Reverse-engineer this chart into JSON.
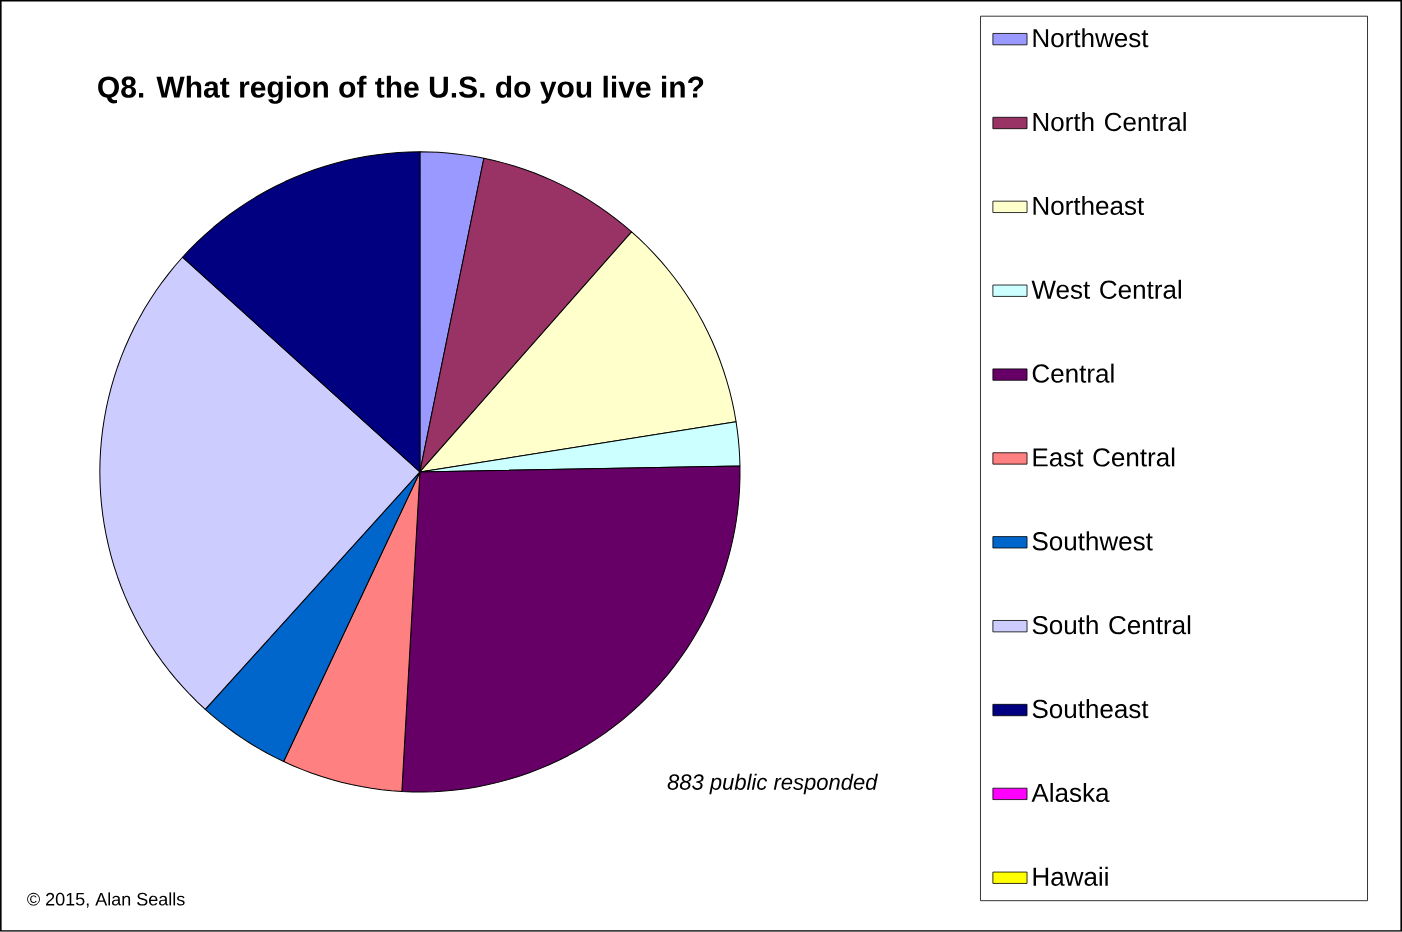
{
  "chart_data": {
    "type": "pie",
    "title": "Q8. What region of the U.S. do you live in?",
    "categories": [
      "Northwest",
      "North Central",
      "Northeast",
      "West Central",
      "Central",
      "East Central",
      "Southwest",
      "South Central",
      "Southeast",
      "Alaska",
      "Hawaii"
    ],
    "values": [
      3.2,
      8.3,
      11.0,
      2.2,
      26.2,
      6.1,
      4.7,
      25.0,
      13.3,
      0,
      0
    ],
    "colors": [
      "#9999ff",
      "#993366",
      "#ffffcc",
      "#ccffff",
      "#660066",
      "#ff8080",
      "#0066cc",
      "#ccccff",
      "#000080",
      "#ff00ff",
      "#ffff00"
    ],
    "legend": "right",
    "annotations": [
      "883 public responded",
      "© 2015, Alan Sealls"
    ]
  }
}
